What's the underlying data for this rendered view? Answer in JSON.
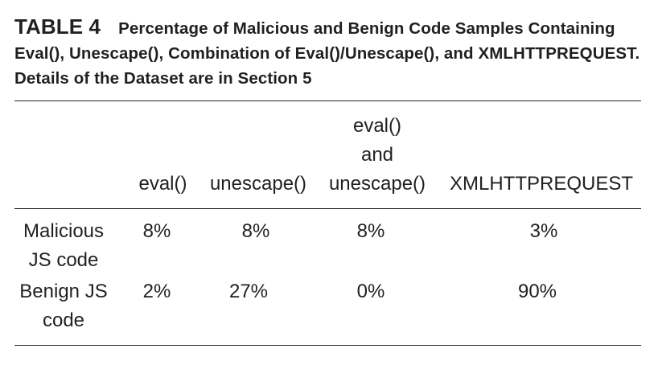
{
  "table": {
    "label": "TABLE 4",
    "caption": "Percentage of Malicious and Benign Code Samples Containing Eval(), Unescape(), Combination of Eval()/Unescape(), and XMLHTTPREQUEST. Details of the Dataset are in Section 5",
    "columns": [
      "eval()",
      "unescape()",
      [
        "eval()",
        "and",
        "unescape()"
      ],
      "XMLHTTPREQUEST"
    ],
    "rows": [
      {
        "label": [
          "Malicious",
          "JS code"
        ],
        "values": [
          "8%",
          "8%",
          "8%",
          "3%"
        ]
      },
      {
        "label": [
          "Benign JS",
          "code"
        ],
        "values": [
          "2%",
          "27%",
          "0%",
          "90%"
        ]
      }
    ]
  }
}
